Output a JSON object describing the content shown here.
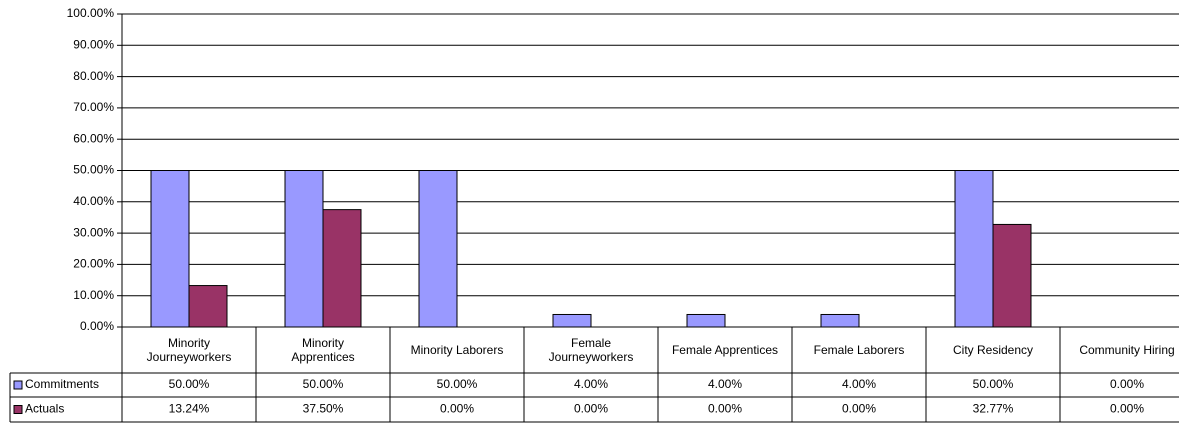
{
  "chart_data": {
    "type": "bar",
    "categories": [
      "Minority Journeyworkers",
      "Minority Apprentices",
      "Minority Laborers",
      "Female Journeyworkers",
      "Female Apprentices",
      "Female Laborers",
      "City Residency",
      "Community Hiring"
    ],
    "series": [
      {
        "name": "Commitments",
        "color": "#9999ff",
        "values": [
          50,
          50,
          50,
          4,
          4,
          4,
          50,
          0
        ],
        "value_labels": [
          "50.00%",
          "50.00%",
          "50.00%",
          "4.00%",
          "4.00%",
          "4.00%",
          "50.00%",
          "0.00%"
        ]
      },
      {
        "name": "Actuals",
        "color": "#993366",
        "values": [
          13.24,
          37.5,
          0,
          0,
          0,
          0,
          32.77,
          0
        ],
        "value_labels": [
          "13.24%",
          "37.50%",
          "0.00%",
          "0.00%",
          "0.00%",
          "0.00%",
          "32.77%",
          "0.00%"
        ]
      }
    ],
    "ylim": [
      0,
      100
    ],
    "yticks": [
      {
        "value": 0,
        "label": "0.00%"
      },
      {
        "value": 10,
        "label": "10.00%"
      },
      {
        "value": 20,
        "label": "20.00%"
      },
      {
        "value": 30,
        "label": "30.00%"
      },
      {
        "value": 40,
        "label": "40.00%"
      },
      {
        "value": 50,
        "label": "50.00%"
      },
      {
        "value": 60,
        "label": "60.00%"
      },
      {
        "value": 70,
        "label": "70.00%"
      },
      {
        "value": 80,
        "label": "80.00%"
      },
      {
        "value": 90,
        "label": "90.00%"
      },
      {
        "value": 100,
        "label": "100.00%"
      }
    ],
    "grid": true
  }
}
